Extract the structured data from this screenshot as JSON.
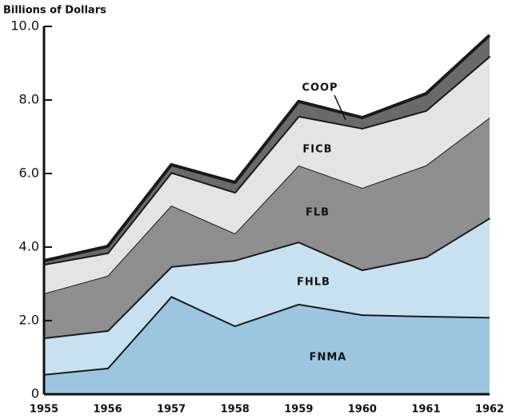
{
  "chart_data": {
    "type": "stacked_area",
    "ylabel": "Billions of Dollars",
    "categories": [
      "1955",
      "1956",
      "1957",
      "1958",
      "1959",
      "1960",
      "1961",
      "1962"
    ],
    "series": [
      {
        "name": "FNMA",
        "color": "#9cc6e0",
        "values": [
          0.55,
          0.72,
          2.67,
          1.87,
          2.46,
          2.17,
          2.13,
          2.1
        ]
      },
      {
        "name": "FHLB",
        "color": "#c8e1f1",
        "values": [
          0.99,
          1.02,
          0.81,
          1.78,
          1.69,
          1.22,
          1.61,
          2.7
        ]
      },
      {
        "name": "FLB",
        "color": "#8e8e8e",
        "values": [
          1.2,
          1.48,
          1.65,
          0.72,
          2.07,
          2.22,
          2.48,
          2.72
        ]
      },
      {
        "name": "FICB",
        "color": "#e4e4e4",
        "values": [
          0.8,
          0.63,
          0.91,
          1.13,
          1.35,
          1.63,
          1.5,
          1.68
        ]
      },
      {
        "name": "COOP",
        "color": "#6a6a6a",
        "values": [
          0.09,
          0.17,
          0.2,
          0.26,
          0.39,
          0.28,
          0.45,
          0.56
        ]
      }
    ],
    "ylim": [
      0,
      10
    ],
    "yticks": [
      0,
      {
        "value": 2,
        "label": "2.0"
      },
      {
        "value": 4,
        "label": "4.0"
      },
      {
        "value": 6,
        "label": "6.0"
      },
      {
        "value": 8,
        "label": "8.0"
      },
      {
        "value": 10,
        "label": "10.0"
      }
    ]
  }
}
